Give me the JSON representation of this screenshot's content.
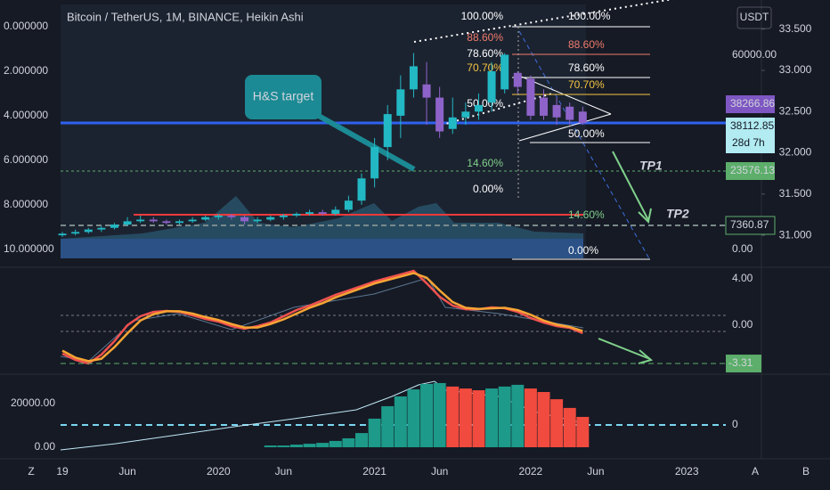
{
  "header": {
    "title": "Bitcoin / TetherUS, 1M, BINANCE, Heikin Ashi",
    "currency": "USDT",
    "buttons": [
      "Z",
      "A",
      "B"
    ]
  },
  "annotations": {
    "callout": "H&S target",
    "tp1": "TP1",
    "tp2": "TP2"
  },
  "fib_left": [
    {
      "label": "100.00%",
      "color": "#ffffff"
    },
    {
      "label": "88.60%",
      "color": "#f07c6c"
    },
    {
      "label": "78.60%",
      "color": "#ffffff"
    },
    {
      "label": "70.70%",
      "color": "#f5c542"
    },
    {
      "label": "50.00%",
      "color": "#ffffff"
    },
    {
      "label": "14.60%",
      "color": "#7fd08a"
    },
    {
      "label": "0.00%",
      "color": "#ffffff"
    }
  ],
  "fib_right": [
    {
      "label": "100.00%",
      "color": "#ffffff"
    },
    {
      "label": "88.60%",
      "color": "#f07c6c"
    },
    {
      "label": "78.60%",
      "color": "#ffffff"
    },
    {
      "label": "70.70%",
      "color": "#f5c542"
    },
    {
      "label": "50.00%",
      "color": "#ffffff"
    },
    {
      "label": "14.60%",
      "color": "#7fd08a"
    },
    {
      "label": "0.00%",
      "color": "#ffffff"
    }
  ],
  "price_tags": [
    {
      "value": 38266.86,
      "color": "#7e57c2"
    },
    {
      "value": 38112.85,
      "color": "#b2ebf2",
      "sub": "28d 7h"
    },
    {
      "value": 23576.13,
      "color": "#5cae6a"
    },
    {
      "value": 7360.87,
      "color": "#ffffff"
    }
  ],
  "chart_data": [
    {
      "type": "candlestick",
      "up_color": "#22b8c4",
      "down_color": "#8e63c9",
      "ylim": [
        30.72,
        33.8
      ],
      "yticks": [
        {
          "value": 33.5,
          "label": "33.500"
        },
        {
          "value": 33,
          "label": "33.000"
        },
        {
          "value": 32.5,
          "label": "32.500"
        },
        {
          "value": 32,
          "label": "32.000"
        },
        {
          "value": 31.5,
          "label": "31.500"
        },
        {
          "value": 31,
          "label": "31.000"
        }
      ],
      "yleftlim": [
        -1,
        10.4
      ],
      "yleft_ticks": [
        {
          "value": 0,
          "label": "0.000000"
        },
        {
          "value": 2,
          "label": "2.000000"
        },
        {
          "value": 4,
          "label": "4.000000"
        },
        {
          "value": 6,
          "label": "6.000000"
        },
        {
          "value": 8,
          "label": "8.000000"
        },
        {
          "value": 10,
          "label": "10.000000"
        }
      ],
      "y3lim": [
        -2752,
        75688
      ],
      "y3ticks": [
        {
          "value": 60000,
          "label": "60000.00"
        },
        {
          "value": 0,
          "label": "0.00"
        }
      ],
      "open": [
        31.0,
        31.02,
        31.04,
        31.07,
        31.09,
        31.13,
        31.17,
        31.19,
        31.17,
        31.15,
        31.17,
        31.19,
        31.22,
        31.24,
        31.22,
        31.17,
        31.19,
        31.22,
        31.24,
        31.26,
        31.28,
        31.26,
        31.31,
        31.42,
        31.69,
        32.07,
        32.45,
        32.77,
        32.83,
        32.67,
        32.29,
        32.43,
        32.5,
        32.61,
        32.77,
        32.97,
        32.9,
        32.67,
        32.58,
        32.56,
        32.5
      ],
      "close": [
        31.02,
        31.04,
        31.07,
        31.09,
        31.13,
        31.17,
        31.19,
        31.17,
        31.15,
        31.17,
        31.19,
        31.22,
        31.24,
        31.22,
        31.17,
        31.19,
        31.22,
        31.24,
        31.26,
        31.28,
        31.26,
        31.31,
        31.42,
        31.69,
        32.07,
        32.47,
        32.77,
        33.05,
        32.67,
        32.26,
        32.43,
        32.5,
        32.58,
        32.99,
        33.19,
        32.8,
        32.45,
        32.45,
        32.43,
        32.4,
        32.36
      ],
      "high": [
        31.04,
        31.07,
        31.09,
        31.11,
        31.15,
        31.22,
        31.24,
        31.22,
        31.19,
        31.19,
        31.22,
        31.24,
        31.26,
        31.26,
        31.24,
        31.22,
        31.24,
        31.26,
        31.28,
        31.31,
        31.31,
        31.35,
        31.48,
        31.75,
        32.18,
        32.58,
        32.94,
        33.21,
        33.1,
        32.8,
        32.67,
        32.61,
        32.72,
        33.1,
        33.21,
        32.99,
        32.94,
        32.77,
        32.67,
        32.61,
        32.56
      ],
      "low": [
        30.98,
        31.0,
        31.02,
        31.04,
        31.07,
        31.11,
        31.15,
        31.15,
        31.13,
        31.13,
        31.15,
        31.17,
        31.19,
        31.19,
        31.13,
        31.15,
        31.17,
        31.19,
        31.22,
        31.24,
        31.24,
        31.24,
        31.28,
        31.37,
        31.58,
        31.91,
        32.18,
        32.67,
        32.34,
        32.18,
        32.23,
        32.34,
        32.4,
        32.5,
        32.72,
        32.72,
        32.4,
        32.4,
        32.34,
        32.34,
        32.34
      ]
    },
    {
      "type": "line",
      "ylim": [
        -4.23,
        5.0
      ],
      "yticks": [
        {
          "value": 4,
          "label": "4.00"
        },
        {
          "value": 0,
          "label": "0.00"
        }
      ],
      "tag": -3.31,
      "tag_color": "#5cae6a",
      "series": [
        {
          "color": "#f0524f",
          "values": [
            -2.46,
            -3.0,
            -3.31,
            -2.54,
            -1.38,
            0.0,
            0.77,
            1.15,
            1.23,
            1.15,
            0.85,
            0.54,
            0.31,
            -0.08,
            -0.31,
            -0.08,
            0.23,
            0.77,
            1.31,
            1.69,
            2.15,
            2.62,
            3.0,
            3.38,
            3.77,
            4.08,
            4.38,
            4.69,
            3.62,
            2.46,
            1.69,
            1.38,
            1.38,
            1.54,
            1.46,
            1.15,
            0.62,
            0.23,
            -0.08,
            -0.23,
            -0.69
          ]
        },
        {
          "color": "#f7a534",
          "values": [
            -2.2,
            -2.8,
            -3.1,
            -2.9,
            -1.9,
            -0.7,
            0.4,
            0.95,
            1.2,
            1.2,
            1.0,
            0.7,
            0.45,
            0.1,
            -0.2,
            -0.2,
            0.1,
            0.5,
            1.0,
            1.5,
            1.9,
            2.4,
            2.8,
            3.2,
            3.6,
            3.9,
            4.2,
            4.5,
            4.1,
            3.0,
            2.0,
            1.5,
            1.4,
            1.45,
            1.5,
            1.3,
            0.9,
            0.4,
            0.05,
            -0.15,
            -0.5
          ]
        }
      ]
    },
    {
      "type": "histogram",
      "ylim": [
        -5300,
        32650
      ],
      "yticks": [
        {
          "value": 20000,
          "label": "20000.00"
        },
        {
          "value": 0,
          "label": "0.00"
        }
      ],
      "y2ticks": [
        0
      ],
      "xlim": [
        -0.14,
        51
      ],
      "xticks": [
        {
          "value": 0,
          "label": "19"
        },
        {
          "value": 5,
          "label": "Jun"
        },
        {
          "value": 12,
          "label": "2020"
        },
        {
          "value": 17,
          "label": "Jun"
        },
        {
          "value": 24,
          "label": "2021"
        },
        {
          "value": 29,
          "label": "Jun"
        },
        {
          "value": 36,
          "label": "2022"
        },
        {
          "value": 41,
          "label": "Jun"
        },
        {
          "value": 48,
          "label": "2023"
        }
      ],
      "values": [
        null,
        null,
        null,
        null,
        null,
        null,
        null,
        null,
        null,
        null,
        null,
        null,
        null,
        null,
        null,
        null,
        800,
        800,
        1200,
        1600,
        2000,
        2900,
        4100,
        6500,
        13100,
        18800,
        23300,
        26500,
        29000,
        29400,
        27800,
        26900,
        26100,
        26900,
        27800,
        28600,
        26900,
        25300,
        22000,
        18000,
        13900
      ],
      "colors": [
        null,
        null,
        null,
        null,
        null,
        null,
        null,
        null,
        null,
        null,
        null,
        null,
        null,
        null,
        null,
        null,
        "#1d9a8a",
        "#1d9a8a",
        "#1d9a8a",
        "#1d9a8a",
        "#1d9a8a",
        "#1d9a8a",
        "#1d9a8a",
        "#1d9a8a",
        "#1d9a8a",
        "#1d9a8a",
        "#1d9a8a",
        "#1d9a8a",
        "#1d9a8a",
        "#1d9a8a",
        "#f04b3e",
        "#f04b3e",
        "#f04b3e",
        "#1d9a8a",
        "#1d9a8a",
        "#1d9a8a",
        "#f04b3e",
        "#f04b3e",
        "#f04b3e",
        "#f04b3e",
        "#f04b3e"
      ]
    }
  ]
}
